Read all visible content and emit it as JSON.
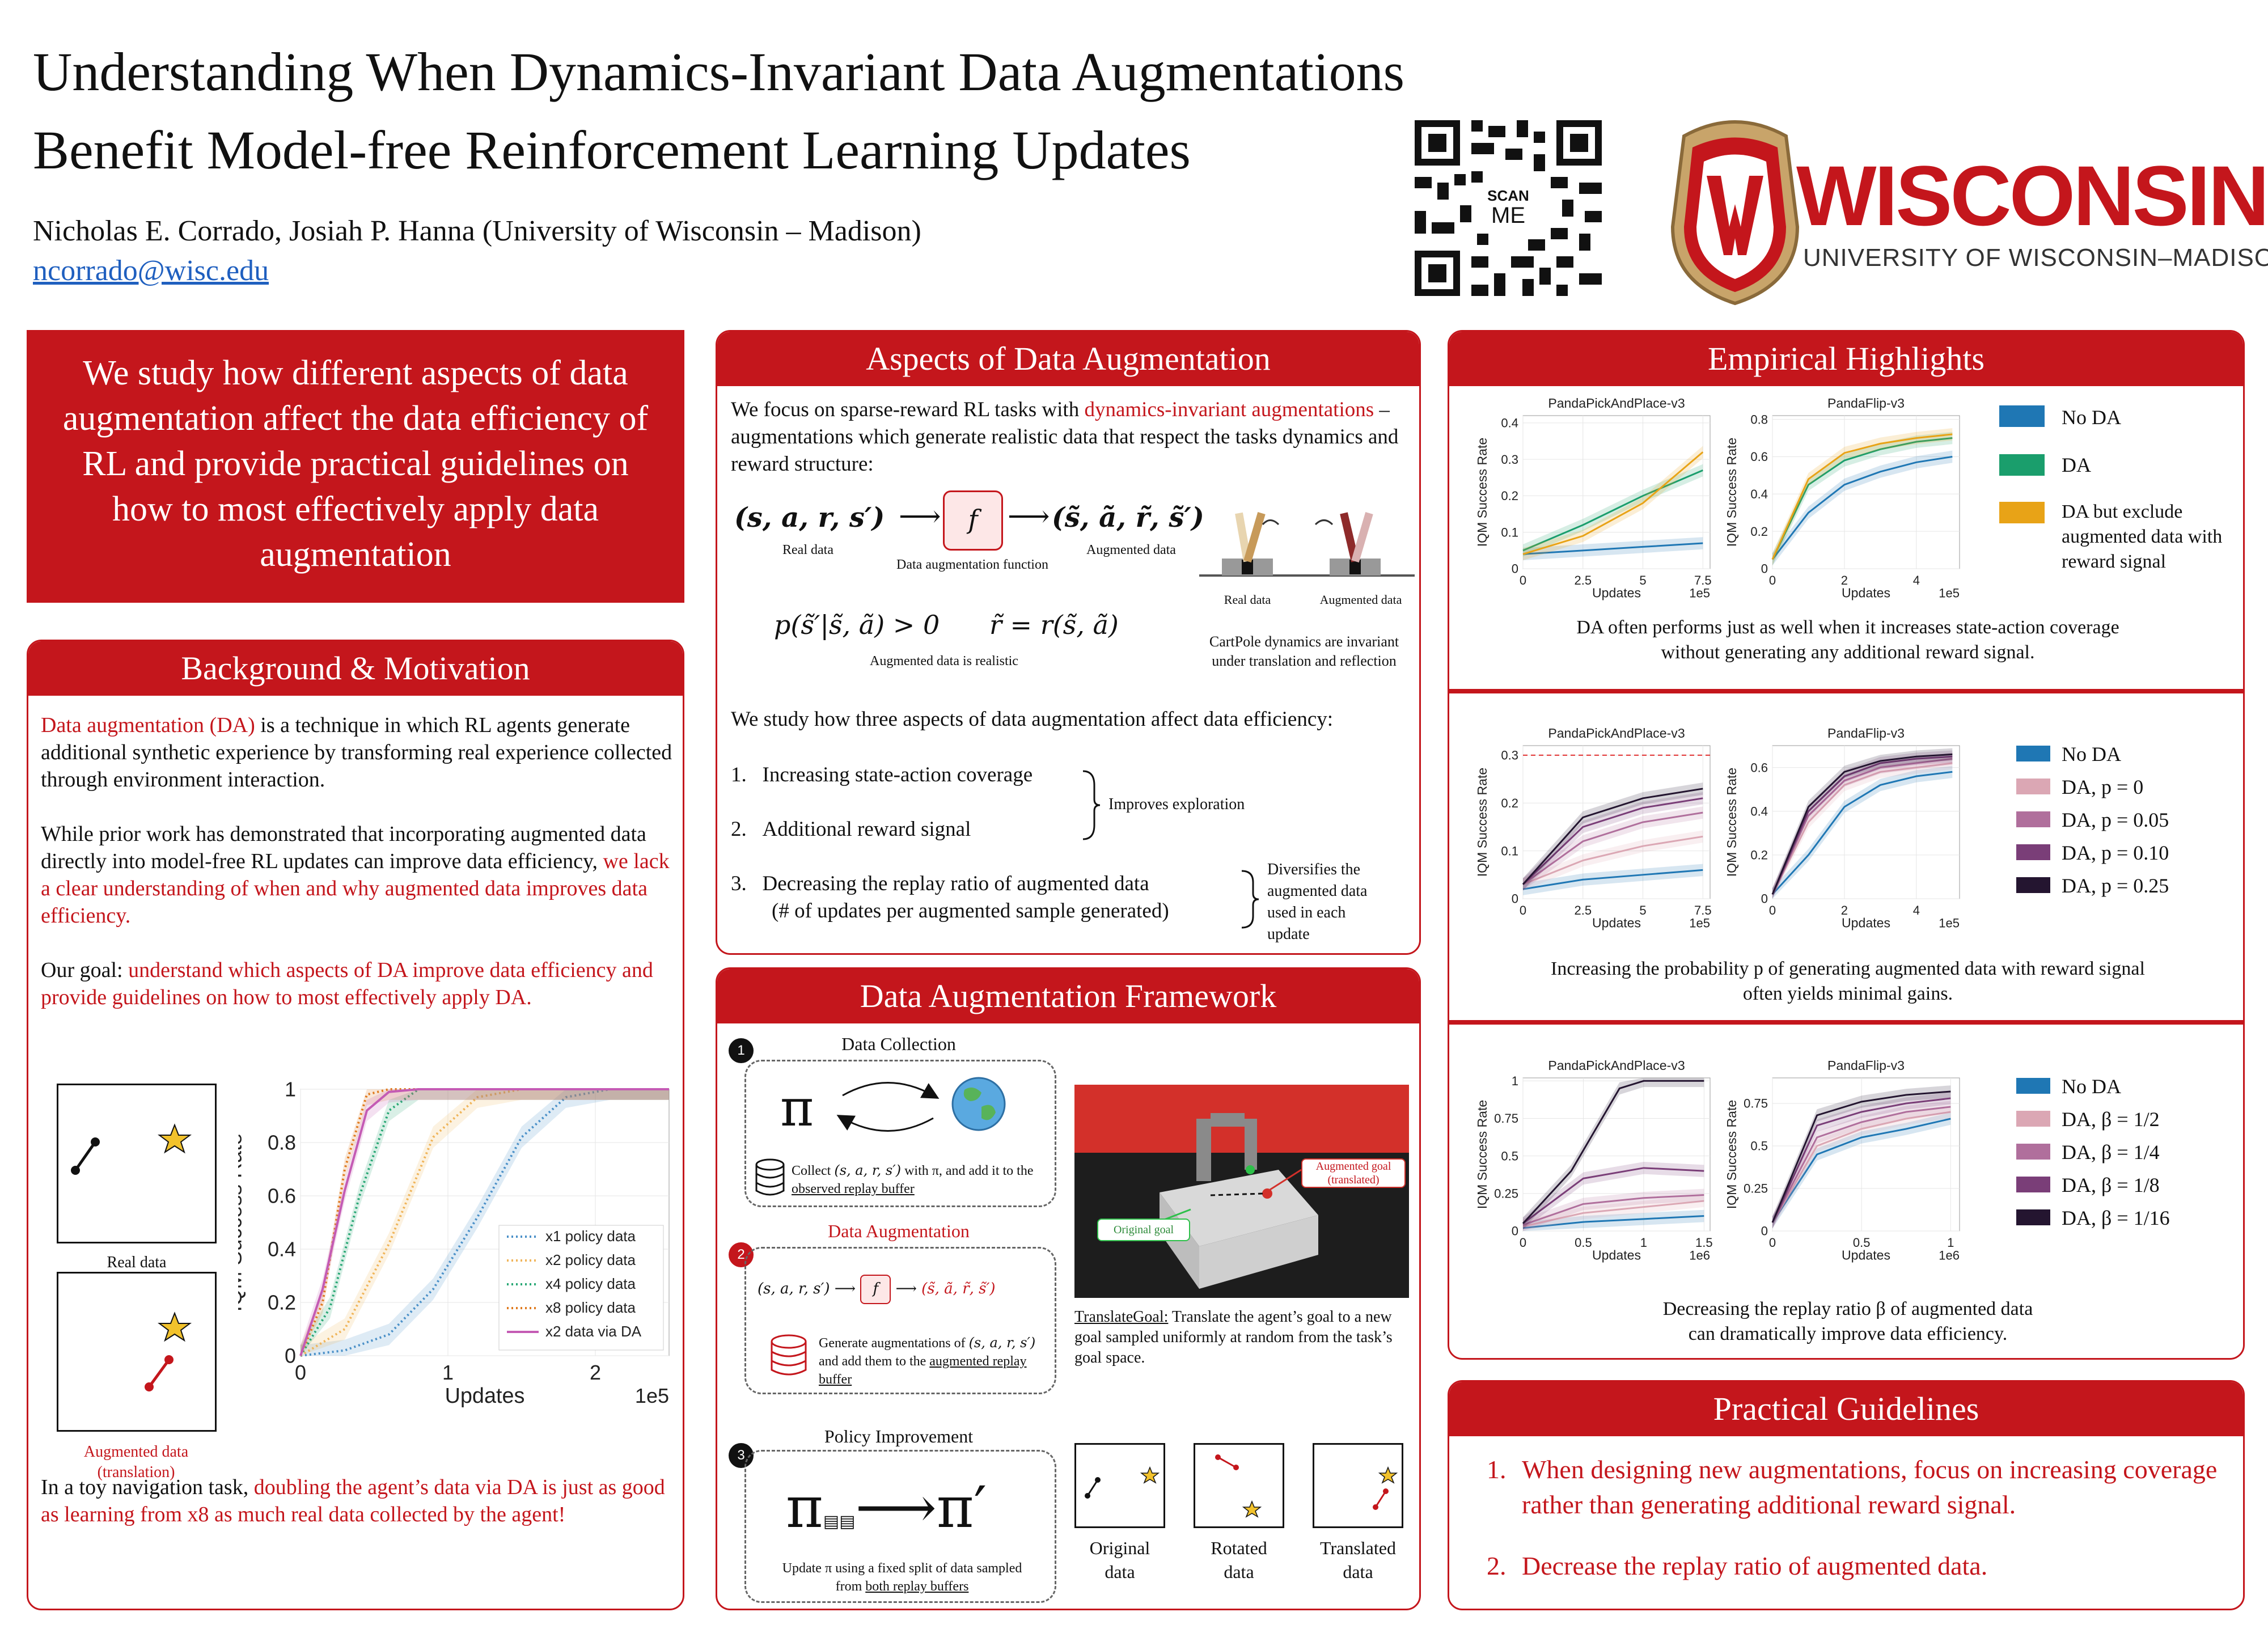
{
  "header": {
    "title_line1": "Understanding When Dynamics-Invariant Data Augmentations",
    "title_line2": "Benefit Model-free Reinforcement Learning Updates",
    "authors": "Nicholas E. Corrado, Josiah P. Hanna (University of Wisconsin – Madison)",
    "email": "ncorrado@wisc.edu",
    "qr_label_1": "SCAN",
    "qr_label_2": "ME",
    "logo_name": "WISCONSIN",
    "logo_sub": "UNIVERSITY OF WISCONSIN–MADISON"
  },
  "intro": {
    "text": "We study how different aspects of data augmentation affect the data efficiency of RL and provide practical guidelines on how to most effectively apply data augmentation"
  },
  "background": {
    "title": "Background & Motivation",
    "p1_red": "Data augmentation (DA)",
    "p1_rest": " is a technique in which RL agents generate additional synthetic experience by transforming real experience collected through environment interaction.",
    "p2_a": "While prior work has demonstrated that incorporating augmented data directly into model-free RL updates can improve data efficiency, ",
    "p2_red": "we lack a clear understanding of when and why augmented data improves data efficiency.",
    "p3_a": "Our goal: ",
    "p3_red": "understand which aspects of DA improve data efficiency and provide guidelines on how to most effectively apply DA.",
    "real_label": "Real data",
    "aug_label": "Augmented data (translation)",
    "p4_a": "In a toy navigation task, ",
    "p4_red": "doubling the agent’s data via DA is just as good as learning from x8 as much real data collected by the agent!"
  },
  "aspects": {
    "title": "Aspects of Data Augmentation",
    "intro_a": "We focus on sparse-reward RL tasks with ",
    "intro_red": "dynamics-invariant augmentations",
    "intro_b": " – augmentations which generate realistic data that respect the tasks dynamics and reward structure:",
    "real_data": "Real data",
    "fn_label": "Data augmentation function",
    "aug_data": "Augmented data",
    "realistic": "Augmented data is realistic",
    "cp_real": "Real data",
    "cp_aug": "Augmented data",
    "cp_caption": "CartPole dynamics are invariant under translation and reflection",
    "study": "We study how three aspects of data augmentation affect data efficiency:",
    "item1": "Increasing state-action coverage",
    "item2": "Additional reward signal",
    "item3a": "Decreasing the replay ratio of augmented data",
    "item3b": "(# of updates per augmented sample generated)",
    "brace1": "Improves exploration",
    "brace2": "Diversifies the augmented data used in each update",
    "n1": "1.",
    "n2": "2.",
    "n3": "3."
  },
  "framework": {
    "title": "Data Augmentation Framework",
    "s1": "Data Collection",
    "s1_text_a": "Collect ",
    "s1_text_b": " with π, and add it to the ",
    "s1_link": "observed replay buffer",
    "s2": "Data Augmentation",
    "s2_text_a": "Generate augmentations of ",
    "s2_text_b": " and add them to the ",
    "s2_link": "augmented replay buffer",
    "s3": "Policy Improvement",
    "s3_text_a": "Update π using a fixed split of data sampled from ",
    "s3_link": "both replay buffers",
    "aug_goal": "Augmented goal (translated)",
    "orig_goal": "Original goal",
    "tg_title": "TranslateGoal:",
    "tg_text": " Translate the agent’s goal to a new goal sampled uniformly at random from the task’s goal space.",
    "orig": "Original data",
    "rot": "Rotated data",
    "trans": "Translated data",
    "num1": "1",
    "num2": "2",
    "num3": "3"
  },
  "highlights": {
    "title": "Empirical Highlights",
    "cap1a": "DA often performs just as well when it increases state-action coverage",
    "cap1b": "without generating any additional reward signal.",
    "cap2a": "Increasing the probability p of generating augmented data with reward signal",
    "cap2b": "often yields minimal gains.",
    "cap3a": "Decreasing the replay ratio β of augmented data",
    "cap3b": "can dramatically improve data efficiency.",
    "legend1": [
      "No DA",
      "DA",
      "DA but exclude augmented data with reward signal"
    ],
    "legend2": [
      "No DA",
      "DA, p = 0",
      "DA, p = 0.05",
      "DA, p = 0.10",
      "DA, p = 0.25"
    ],
    "legend3": [
      "No DA",
      "DA, β = 1/2",
      "DA, β = 1/4",
      "DA, β = 1/8",
      "DA, β = 1/16"
    ],
    "colors1": [
      "#1f77b4",
      "#1a9e6c",
      "#e8a317"
    ],
    "colors2": [
      "#1f77b4",
      "#dba7b4",
      "#b06f9c",
      "#7a3e78",
      "#241530"
    ]
  },
  "guidelines": {
    "title": "Practical Guidelines",
    "g1": "When designing new augmentations, focus on increasing coverage rather than generating additional reward signal.",
    "g2": "Decrease the replay ratio of augmented data.",
    "n1": "1.",
    "n2": "2."
  },
  "chart_data": [
    {
      "type": "line",
      "title": "",
      "xlabel": "Updates",
      "ylabel": "IQM Success Rate",
      "x_unit": "1e5",
      "xlim": [
        0,
        2.5
      ],
      "ylim": [
        0,
        1.0
      ],
      "xticks": [
        0,
        1,
        2
      ],
      "yticks": [
        0.0,
        0.2,
        0.4,
        0.6,
        0.8,
        1.0
      ],
      "legend": "bottom-right",
      "series": [
        {
          "name": "x1 policy data",
          "color": "#4a90c8",
          "style": "dotted",
          "x": [
            0,
            0.3,
            0.6,
            0.9,
            1.2,
            1.5,
            1.8,
            2.1,
            2.5
          ],
          "y": [
            0,
            0.02,
            0.08,
            0.25,
            0.52,
            0.82,
            0.97,
            1.0,
            1.0
          ]
        },
        {
          "name": "x2 policy data",
          "color": "#f0b55a",
          "style": "dotted",
          "x": [
            0,
            0.3,
            0.6,
            0.9,
            1.2,
            1.5,
            2.5
          ],
          "y": [
            0,
            0.1,
            0.42,
            0.82,
            0.97,
            1.0,
            1.0
          ]
        },
        {
          "name": "x4 policy data",
          "color": "#2aa876",
          "style": "dotted",
          "x": [
            0,
            0.2,
            0.4,
            0.6,
            0.8,
            1.0,
            2.5
          ],
          "y": [
            0,
            0.18,
            0.6,
            0.92,
            1.0,
            1.0,
            1.0
          ]
        },
        {
          "name": "x8 policy data",
          "color": "#e07b20",
          "style": "dotted",
          "x": [
            0,
            0.15,
            0.3,
            0.45,
            0.6,
            2.5
          ],
          "y": [
            0,
            0.2,
            0.7,
            0.98,
            1.0,
            1.0
          ]
        },
        {
          "name": "x2 data via DA",
          "color": "#c45bb4",
          "style": "solid",
          "x": [
            0,
            0.15,
            0.3,
            0.45,
            0.6,
            0.8,
            2.5
          ],
          "y": [
            0,
            0.25,
            0.62,
            0.92,
            0.99,
            1.0,
            1.0
          ]
        }
      ]
    },
    {
      "type": "line",
      "title": "PandaPickAndPlace-v3",
      "xlabel": "Updates",
      "ylabel": "IQM Success Rate",
      "x_unit": "1e5",
      "xlim": [
        0,
        7.8
      ],
      "ylim": [
        0,
        0.42
      ],
      "xticks": [
        0.0,
        2.5,
        5.0,
        7.5
      ],
      "yticks": [
        0.0,
        0.1,
        0.2,
        0.3,
        0.4
      ],
      "series": [
        {
          "name": "No DA",
          "color": "#1f77b4",
          "x": [
            0,
            2.5,
            5.0,
            7.5
          ],
          "y": [
            0.04,
            0.05,
            0.06,
            0.07
          ]
        },
        {
          "name": "DA",
          "color": "#1a9e6c",
          "x": [
            0,
            2.5,
            5.0,
            7.5
          ],
          "y": [
            0.05,
            0.12,
            0.2,
            0.27
          ]
        },
        {
          "name": "DA but exclude augmented data with reward signal",
          "color": "#e8a317",
          "x": [
            0,
            2.5,
            5.0,
            7.5
          ],
          "y": [
            0.04,
            0.09,
            0.18,
            0.32
          ]
        }
      ]
    },
    {
      "type": "line",
      "title": "PandaFlip-v3",
      "xlabel": "Updates",
      "ylabel": "IQM Success Rate",
      "x_unit": "1e5",
      "xlim": [
        0,
        5.2
      ],
      "ylim": [
        0,
        0.82
      ],
      "xticks": [
        0,
        2,
        4
      ],
      "yticks": [
        0.0,
        0.2,
        0.4,
        0.6,
        0.8
      ],
      "series": [
        {
          "name": "No DA",
          "color": "#1f77b4",
          "x": [
            0,
            1,
            2,
            3,
            4,
            5
          ],
          "y": [
            0.05,
            0.3,
            0.45,
            0.52,
            0.57,
            0.6
          ]
        },
        {
          "name": "DA",
          "color": "#1a9e6c",
          "x": [
            0,
            1,
            2,
            3,
            4,
            5
          ],
          "y": [
            0.05,
            0.45,
            0.58,
            0.64,
            0.68,
            0.7
          ]
        },
        {
          "name": "DA but exclude augmented data with reward signal",
          "color": "#e8a317",
          "x": [
            0,
            1,
            2,
            3,
            4,
            5
          ],
          "y": [
            0.05,
            0.48,
            0.62,
            0.67,
            0.7,
            0.72
          ]
        }
      ]
    },
    {
      "type": "line",
      "title": "PandaPickAndPlace-v3",
      "xlabel": "Updates",
      "ylabel": "IQM Success Rate",
      "x_unit": "1e5",
      "xlim": [
        0,
        7.8
      ],
      "ylim": [
        0,
        0.32
      ],
      "xticks": [
        0.0,
        2.5,
        5.0,
        7.5
      ],
      "yticks": [
        0.0,
        0.1,
        0.2,
        0.3
      ],
      "series": [
        {
          "name": "No DA",
          "color": "#1f77b4",
          "x": [
            0,
            2.5,
            5.0,
            7.5
          ],
          "y": [
            0.02,
            0.04,
            0.05,
            0.06
          ]
        },
        {
          "name": "DA, p = 0",
          "color": "#dba7b4",
          "x": [
            0,
            2.5,
            5.0,
            7.5
          ],
          "y": [
            0.03,
            0.08,
            0.11,
            0.13
          ]
        },
        {
          "name": "DA, p = 0.05",
          "color": "#b06f9c",
          "x": [
            0,
            2.5,
            5.0,
            7.5
          ],
          "y": [
            0.03,
            0.12,
            0.16,
            0.18
          ]
        },
        {
          "name": "DA, p = 0.10",
          "color": "#7a3e78",
          "x": [
            0,
            2.5,
            5.0,
            7.5
          ],
          "y": [
            0.03,
            0.15,
            0.19,
            0.21
          ]
        },
        {
          "name": "DA, p = 0.25",
          "color": "#241530",
          "x": [
            0,
            2.5,
            5.0,
            7.5
          ],
          "y": [
            0.03,
            0.17,
            0.21,
            0.23
          ]
        }
      ]
    },
    {
      "type": "line",
      "title": "PandaFlip-v3",
      "xlabel": "Updates",
      "ylabel": "IQM Success Rate",
      "x_unit": "1e5",
      "xlim": [
        0,
        5.2
      ],
      "ylim": [
        0,
        0.7
      ],
      "xticks": [
        0,
        2,
        4
      ],
      "yticks": [
        0.0,
        0.2,
        0.4,
        0.6
      ],
      "series": [
        {
          "name": "No DA",
          "color": "#1f77b4",
          "x": [
            0,
            1,
            2,
            3,
            4,
            5
          ],
          "y": [
            0.02,
            0.2,
            0.42,
            0.52,
            0.56,
            0.58
          ]
        },
        {
          "name": "DA, p = 0",
          "color": "#dba7b4",
          "x": [
            0,
            1,
            2,
            3,
            4,
            5
          ],
          "y": [
            0.02,
            0.35,
            0.52,
            0.58,
            0.6,
            0.62
          ]
        },
        {
          "name": "DA, p = 0.05",
          "color": "#b06f9c",
          "x": [
            0,
            1,
            2,
            3,
            4,
            5
          ],
          "y": [
            0.02,
            0.38,
            0.54,
            0.6,
            0.62,
            0.64
          ]
        },
        {
          "name": "DA, p = 0.10",
          "color": "#7a3e78",
          "x": [
            0,
            1,
            2,
            3,
            4,
            5
          ],
          "y": [
            0.02,
            0.4,
            0.56,
            0.62,
            0.64,
            0.65
          ]
        },
        {
          "name": "DA, p = 0.25",
          "color": "#241530",
          "x": [
            0,
            1,
            2,
            3,
            4,
            5
          ],
          "y": [
            0.02,
            0.42,
            0.58,
            0.63,
            0.65,
            0.66
          ]
        }
      ]
    },
    {
      "type": "line",
      "title": "PandaPickAndPlace-v3",
      "xlabel": "Updates",
      "ylabel": "IQM Success Rate",
      "x_unit": "1e6",
      "xlim": [
        0,
        1.55
      ],
      "ylim": [
        0,
        1.02
      ],
      "xticks": [
        0.0,
        0.5,
        1.0,
        1.5
      ],
      "yticks": [
        0.0,
        0.25,
        0.5,
        0.75,
        1.0
      ],
      "series": [
        {
          "name": "No DA",
          "color": "#1f77b4",
          "x": [
            0,
            0.5,
            1.0,
            1.5
          ],
          "y": [
            0.02,
            0.06,
            0.08,
            0.1
          ]
        },
        {
          "name": "DA, β = 1/2",
          "color": "#dba7b4",
          "x": [
            0,
            0.5,
            1.0,
            1.5
          ],
          "y": [
            0.03,
            0.12,
            0.16,
            0.2
          ]
        },
        {
          "name": "DA, β = 1/4",
          "color": "#b06f9c",
          "x": [
            0,
            0.5,
            1.0,
            1.5
          ],
          "y": [
            0.04,
            0.18,
            0.22,
            0.24
          ]
        },
        {
          "name": "DA, β = 1/8",
          "color": "#7a3e78",
          "x": [
            0,
            0.5,
            1.0,
            1.5
          ],
          "y": [
            0.05,
            0.35,
            0.42,
            0.4
          ]
        },
        {
          "name": "DA, β = 1/16",
          "color": "#241530",
          "x": [
            0,
            0.4,
            0.8,
            1.0,
            1.5
          ],
          "y": [
            0.05,
            0.4,
            0.95,
            1.0,
            1.0
          ]
        }
      ]
    },
    {
      "type": "line",
      "title": "PandaFlip-v3",
      "xlabel": "Updates",
      "ylabel": "IQM Success Rate",
      "x_unit": "1e6",
      "xlim": [
        0,
        1.05
      ],
      "ylim": [
        0,
        0.9
      ],
      "xticks": [
        0.0,
        0.5,
        1.0
      ],
      "yticks": [
        0.0,
        0.25,
        0.5,
        0.75
      ],
      "series": [
        {
          "name": "No DA",
          "color": "#1f77b4",
          "x": [
            0,
            0.25,
            0.5,
            0.75,
            1.0
          ],
          "y": [
            0.05,
            0.45,
            0.55,
            0.6,
            0.66
          ]
        },
        {
          "name": "DA, β = 1/2",
          "color": "#dba7b4",
          "x": [
            0,
            0.25,
            0.5,
            0.75,
            1.0
          ],
          "y": [
            0.05,
            0.5,
            0.6,
            0.66,
            0.7
          ]
        },
        {
          "name": "DA, β = 1/4",
          "color": "#b06f9c",
          "x": [
            0,
            0.25,
            0.5,
            0.75,
            1.0
          ],
          "y": [
            0.05,
            0.55,
            0.64,
            0.7,
            0.73
          ]
        },
        {
          "name": "DA, β = 1/8",
          "color": "#7a3e78",
          "x": [
            0,
            0.25,
            0.5,
            0.75,
            1.0
          ],
          "y": [
            0.05,
            0.62,
            0.7,
            0.75,
            0.78
          ]
        },
        {
          "name": "DA, β = 1/16",
          "color": "#241530",
          "x": [
            0,
            0.25,
            0.5,
            0.75,
            1.0
          ],
          "y": [
            0.05,
            0.68,
            0.76,
            0.8,
            0.82
          ]
        }
      ]
    }
  ]
}
